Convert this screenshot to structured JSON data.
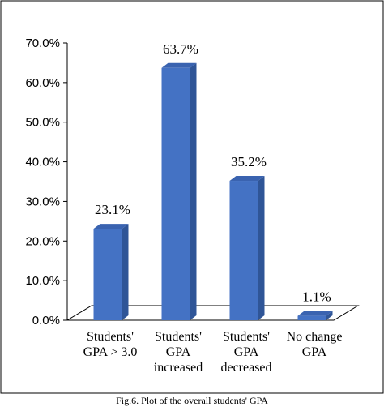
{
  "chart_data": {
    "type": "bar",
    "style": "3d-column",
    "categories": [
      [
        "Students'",
        "GPA > 3.0"
      ],
      [
        "Students'",
        "GPA",
        "increased"
      ],
      [
        "Students'",
        "GPA",
        "decreased"
      ],
      [
        "No change",
        "GPA"
      ]
    ],
    "series": [
      {
        "values": [
          23.1,
          63.7,
          35.2,
          1.1
        ],
        "data_labels": [
          "23.1%",
          "63.7%",
          "35.2%",
          "1.1%"
        ]
      }
    ],
    "ylim": [
      0,
      70
    ],
    "yticks": [
      0,
      10,
      20,
      30,
      40,
      50,
      60,
      70
    ],
    "ytick_labels": [
      "0.0%",
      "10.0%",
      "20.0%",
      "30.0%",
      "40.0%",
      "50.0%",
      "60.0%",
      "70.0%"
    ],
    "grid": false,
    "legend": "none",
    "colors": {
      "bar_front": "#4472C4",
      "bar_side": "#2F5597",
      "bar_top": "#3A63B0",
      "floor": "#FFFFFF",
      "frame": "#000000"
    }
  },
  "caption": "Fig.6. Plot of the overall students' GPA"
}
